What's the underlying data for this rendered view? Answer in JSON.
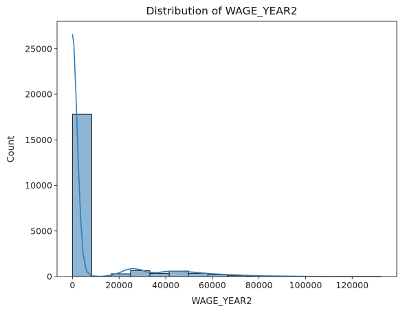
{
  "chart_data": {
    "type": "bar",
    "title": "Distribution of WAGE_YEAR2",
    "xlabel": "WAGE_YEAR2",
    "ylabel": "Count",
    "xlim": [
      -6600,
      139100
    ],
    "ylim": [
      0,
      28000
    ],
    "x_ticks": [
      0,
      20000,
      40000,
      60000,
      80000,
      100000,
      120000
    ],
    "x_tick_labels": [
      "0",
      "20000",
      "40000",
      "60000",
      "80000",
      "100000",
      "120000"
    ],
    "y_ticks": [
      0,
      5000,
      10000,
      15000,
      20000,
      25000
    ],
    "y_tick_labels": [
      "0",
      "5000",
      "10000",
      "15000",
      "20000",
      "25000"
    ],
    "bar_edges": [
      0,
      8300,
      16600,
      24900,
      33200,
      41500,
      49800,
      58100,
      66400,
      74700,
      83000,
      91300,
      99600,
      107900,
      116200,
      124500,
      132800
    ],
    "bar_counts": [
      17800,
      10,
      300,
      650,
      350,
      600,
      350,
      200,
      100,
      60,
      30,
      20,
      15,
      10,
      5,
      5
    ],
    "kde": {
      "x": [
        0,
        600,
        1500,
        2500,
        3500,
        4500,
        6000,
        8000,
        12000,
        16000,
        20000,
        23000,
        26000,
        29000,
        32000,
        36000,
        40000,
        44000,
        48000,
        52000,
        56000,
        60000,
        66000,
        72000,
        80000,
        90000,
        100000,
        112000,
        124000,
        132800
      ],
      "y": [
        26600,
        25500,
        20000,
        12500,
        6500,
        2600,
        600,
        80,
        20,
        120,
        400,
        750,
        880,
        760,
        500,
        420,
        560,
        590,
        560,
        480,
        380,
        300,
        220,
        150,
        90,
        50,
        25,
        10,
        5,
        3
      ]
    },
    "grid": false,
    "legend": "none",
    "colors": {
      "bar_fill": "#8DB5D5",
      "bar_edge": "#1a1a1a",
      "kde_line": "#2F7BB2",
      "axis": "#222222"
    }
  }
}
